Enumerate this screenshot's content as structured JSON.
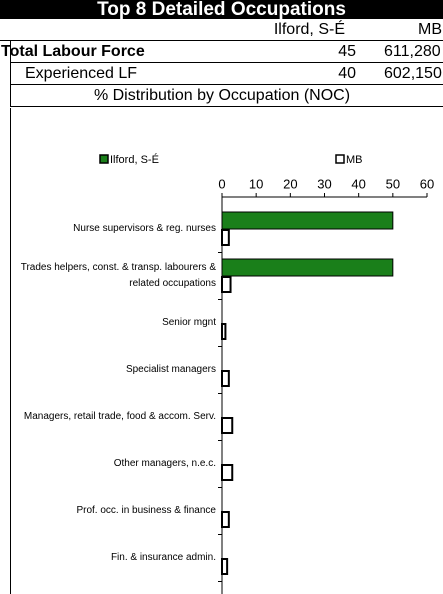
{
  "header": {
    "title": "Top 8 Detailed Occupations"
  },
  "table": {
    "columns": [
      "Ilford, S-É",
      "MB"
    ],
    "rows": [
      [
        "Total Labour Force",
        45,
        "611,280"
      ],
      [
        "Experienced LF",
        40,
        "602,150"
      ]
    ],
    "section_title": "% Distribution by Occupation (NOC)"
  },
  "chart_data": {
    "type": "bar",
    "orientation": "horizontal",
    "categories": [
      "Nurse supervisors & reg. nurses",
      "Trades helpers, const. & transp. labourers & related occupations",
      "Senior mgnt",
      "Specialist managers",
      "Managers, retail trade, food & accom. Serv.",
      "Other managers, n.e.c.",
      "Prof. occ. in business & finance",
      "Fin. & insurance admin."
    ],
    "series": [
      {
        "name": "Ilford, S-É",
        "color": "#1a7f1a",
        "values": [
          50,
          50,
          0,
          0,
          0,
          0,
          0,
          0
        ]
      },
      {
        "name": "MB",
        "color": "#ffffff",
        "values": [
          2,
          2.5,
          1,
          2,
          3,
          3,
          2,
          1.5
        ]
      }
    ],
    "xlim": [
      0,
      60
    ],
    "xticks": [
      0,
      10,
      20,
      30,
      40,
      50,
      60
    ]
  }
}
